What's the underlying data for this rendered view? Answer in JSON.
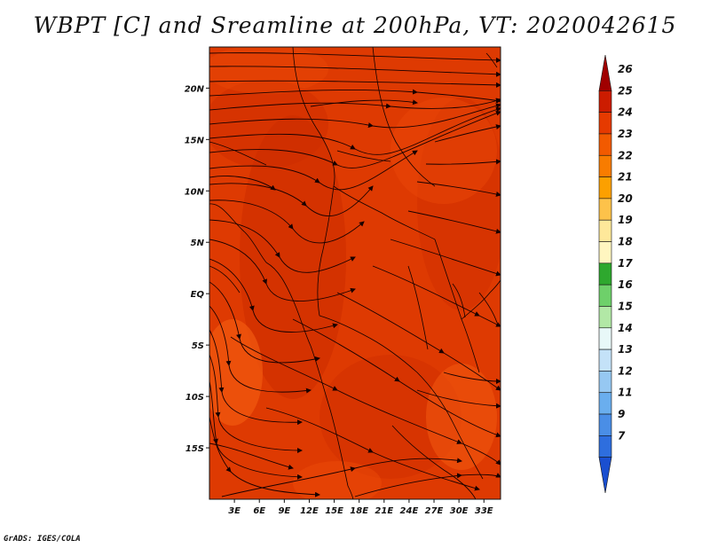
{
  "title": "WBPT [C] and Sreamline at 200hPa, VT: 2020042615",
  "credit": "GrADS: IGES/COLA",
  "map": {
    "lon_range": [
      0,
      35
    ],
    "lat_range": [
      -20,
      24
    ],
    "lon_ticks": [
      "3E",
      "6E",
      "9E",
      "12E",
      "15E",
      "18E",
      "21E",
      "24E",
      "27E",
      "30E",
      "33E"
    ],
    "lon_tick_values": [
      3,
      6,
      9,
      12,
      15,
      18,
      21,
      24,
      27,
      30,
      33
    ],
    "lat_ticks": [
      "20N",
      "15N",
      "10N",
      "5N",
      "EQ",
      "5S",
      "10S",
      "15S"
    ],
    "lat_tick_values": [
      20,
      15,
      10,
      5,
      0,
      -5,
      -10,
      -15
    ]
  },
  "colorbar": {
    "levels": [
      "26",
      "25",
      "24",
      "23",
      "22",
      "21",
      "20",
      "19",
      "18",
      "17",
      "16",
      "15",
      "14",
      "13",
      "12",
      "11",
      "9",
      "7"
    ],
    "colors": [
      "#a00000",
      "#cc1c00",
      "#e63a00",
      "#f25a00",
      "#f87c00",
      "#fca000",
      "#fdc24a",
      "#fee89a",
      "#fff6c0",
      "#2ea82e",
      "#6ed06a",
      "#b2e8a6",
      "#e8f8f8",
      "#c4e2f8",
      "#96c8f2",
      "#6aaeee",
      "#4a8ee6",
      "#2e6ede",
      "#1a4fd0"
    ]
  },
  "field": {
    "background_color": "#de3a02",
    "shade_colors": [
      "#cc2c00",
      "#ec4a08",
      "#f25a10"
    ]
  }
}
